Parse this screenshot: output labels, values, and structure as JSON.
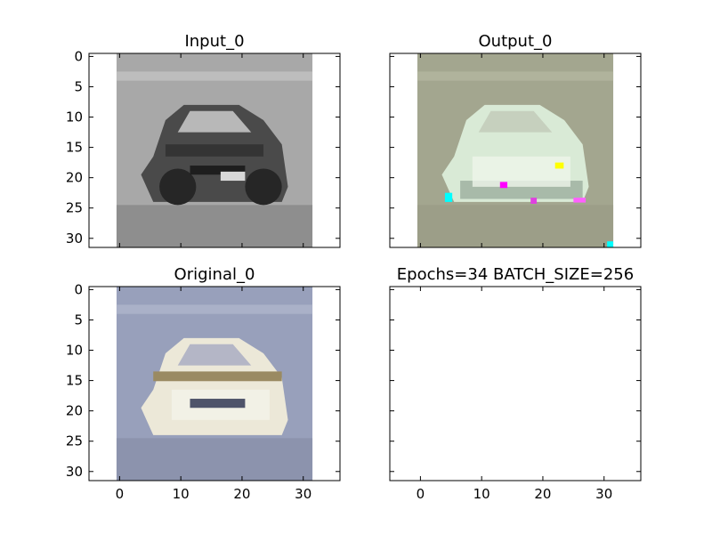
{
  "chart_data": [
    {
      "type": "image",
      "panel": "input",
      "title": "Input_0",
      "xlim": [
        -5,
        36
      ],
      "ylim": [
        31.5,
        -0.5
      ],
      "image_extent": [
        -0.5,
        31.5,
        31.5,
        -0.5
      ],
      "xticks": [
        0,
        10,
        20,
        30
      ],
      "yticks": [
        0,
        5,
        10,
        15,
        20,
        25,
        30
      ],
      "show_xticklabels": false,
      "show_yticklabels": true,
      "image": {
        "colormap": "grayscale",
        "background": "#a8a8a8",
        "sky_band": "#bdbdbd",
        "road": "#8e8e8e",
        "car_body": "#4a4a4a",
        "car_dark": "#262626",
        "window": "#b8b8b8",
        "grille": "#1e1e1e",
        "plate": "#d8d8d8"
      }
    },
    {
      "type": "image",
      "panel": "output",
      "title": "Output_0",
      "xlim": [
        -5,
        36
      ],
      "ylim": [
        31.5,
        -0.5
      ],
      "image_extent": [
        -0.5,
        31.5,
        31.5,
        -0.5
      ],
      "xticks": [
        0,
        10,
        20,
        30
      ],
      "yticks": [
        0,
        5,
        10,
        15,
        20,
        25,
        30
      ],
      "show_xticklabels": false,
      "show_yticklabels": false,
      "image": {
        "colormap": "rgb",
        "background": "#a3a68f",
        "sky_band": "#b0b39c",
        "road": "#9c9e88",
        "car_body": "#d9ead6",
        "car_shadow": "#7f9285",
        "window": "#c6d0be",
        "bright": "#edf5ea",
        "artifact_colors": [
          "#00ffff",
          "#ff00ff",
          "#ffff00",
          "#e040e0",
          "#ff60ff"
        ]
      }
    },
    {
      "type": "image",
      "panel": "original",
      "title": "Original_0",
      "xlim": [
        -5,
        36
      ],
      "ylim": [
        31.5,
        -0.5
      ],
      "image_extent": [
        -0.5,
        31.5,
        31.5,
        -0.5
      ],
      "xticks": [
        0,
        10,
        20,
        30
      ],
      "yticks": [
        0,
        5,
        10,
        15,
        20,
        25,
        30
      ],
      "show_xticklabels": true,
      "show_yticklabels": true,
      "image": {
        "colormap": "rgb",
        "background": "#98a0bb",
        "sky_band": "#aab1c8",
        "road": "#8c93ad",
        "car_body": "#ece8d8",
        "car_trim": "#9a8a62",
        "window": "#b4b6c6",
        "grille": "#4f546a",
        "bright": "#f4f3ea"
      }
    },
    {
      "type": "empty",
      "panel": "info",
      "title": "Epochs=34 BATCH_SIZE=256",
      "xlim": [
        -5,
        36
      ],
      "ylim": [
        31.5,
        -0.5
      ],
      "xticks": [
        0,
        10,
        20,
        30
      ],
      "yticks": [
        0,
        5,
        10,
        15,
        20,
        25,
        30
      ],
      "show_xticklabels": true,
      "show_yticklabels": false
    }
  ]
}
